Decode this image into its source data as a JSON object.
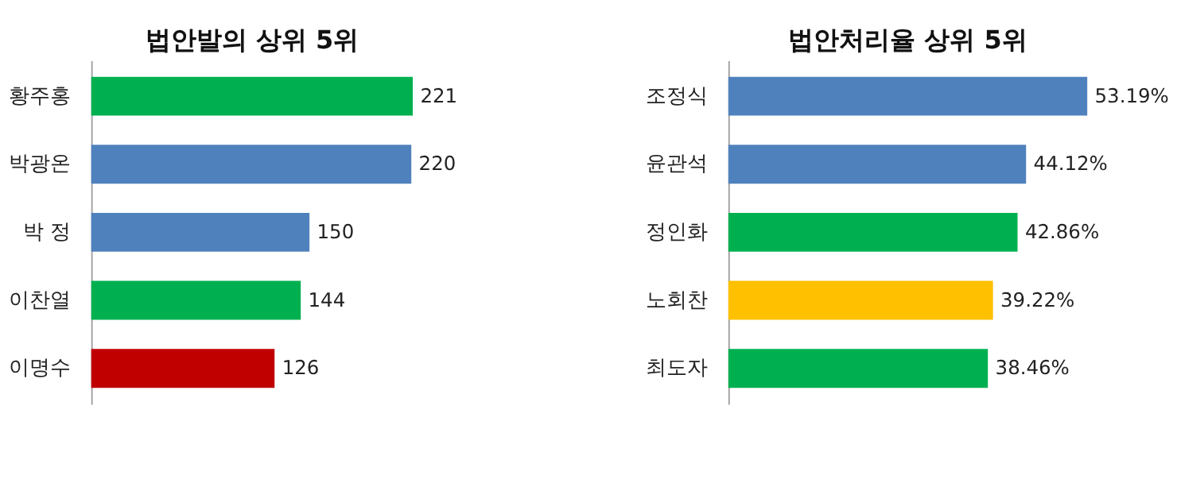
{
  "chart_data": [
    {
      "type": "bar",
      "orientation": "horizontal",
      "title": "법안발의 상위 5위",
      "categories": [
        "황주홍",
        "박광온",
        "박  정",
        "이찬열",
        "이명수"
      ],
      "values": [
        221,
        220,
        150,
        144,
        126
      ],
      "colors": [
        "#00b050",
        "#4f81bd",
        "#4f81bd",
        "#00b050",
        "#c00000"
      ],
      "data_labels": true,
      "tick_labels": "y"
    },
    {
      "type": "bar",
      "orientation": "horizontal",
      "title": "법안처리율 상위 5위",
      "categories": [
        "조정식",
        "윤관석",
        "정인화",
        "노회찬",
        "최도자"
      ],
      "values": [
        53.19,
        44.12,
        42.86,
        39.22,
        38.46
      ],
      "value_labels": [
        "53.19%",
        "44.12%",
        "42.86%",
        "39.22%",
        "38.46%"
      ],
      "colors": [
        "#4f81bd",
        "#4f81bd",
        "#00b050",
        "#ffc000",
        "#00b050"
      ],
      "tick_labels": "y"
    }
  ]
}
